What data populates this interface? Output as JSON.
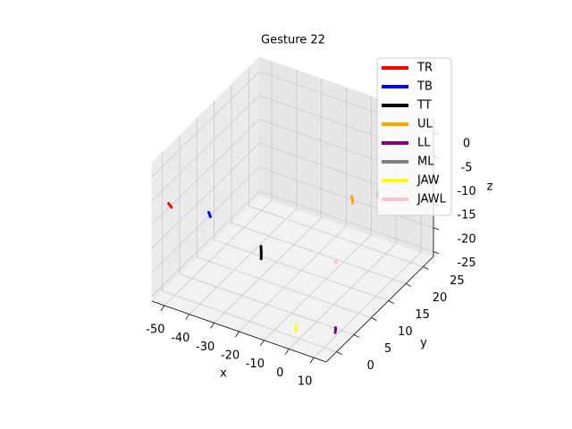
{
  "chart_data": {
    "type": "line3d",
    "title": "Gesture 22",
    "xlabel": "x",
    "ylabel": "y",
    "zlabel": "z",
    "xlim": [
      -55,
      15
    ],
    "ylim": [
      -3,
      28
    ],
    "zlim": [
      -26,
      3
    ],
    "xticks": [
      -50,
      -40,
      -30,
      -20,
      -10,
      0,
      10
    ],
    "yticks": [
      0,
      5,
      10,
      15,
      20,
      25
    ],
    "zticks": [
      -25,
      -20,
      -15,
      -10,
      -5,
      0
    ],
    "grid": true,
    "legend": "upper right",
    "series": [
      {
        "name": "TR",
        "color": "#ff0000",
        "x": [
          -48.6,
          -48.3,
          -48.0
        ],
        "y": [
          -2.8,
          -2.6,
          -2.4
        ],
        "z": [
          -4.5,
          -5,
          -5.5
        ]
      },
      {
        "name": "TB",
        "color": "#0000ff",
        "x": [
          -38.3,
          -38.1,
          -37.9
        ],
        "y": [
          1.4,
          1.5,
          1.6
        ],
        "z": [
          -7.5,
          -8,
          -8.5
        ]
      },
      {
        "name": "TT",
        "color": "#000000",
        "x": [
          -25.5,
          -25.4,
          -25.3
        ],
        "y": [
          7.3,
          7.3,
          7.2
        ],
        "z": [
          -16.5,
          -18,
          -19
        ]
      },
      {
        "name": "UL",
        "color": "#ffa500",
        "x": [
          -6.4,
          -6.0,
          -5.6
        ],
        "y": [
          19.8,
          19.7,
          19.5
        ],
        "z": [
          -11.5,
          -12,
          -12.5
        ]
      },
      {
        "name": "LL",
        "color": "#800080",
        "x": [
          9.6,
          9.8,
          10.0
        ],
        "y": [
          3.6,
          3.4,
          3.2
        ],
        "z": [
          -24.5,
          -25,
          -25.2
        ]
      },
      {
        "name": "ML",
        "color": "#808080",
        "x": [
          2.8,
          2.8,
          2.8
        ],
        "y": [
          20.7,
          20.7,
          20.7
        ],
        "z": [
          -9.5,
          -10,
          -10.5
        ]
      },
      {
        "name": "JAW",
        "color": "#ffff00",
        "x": [
          -2.9,
          -2.7,
          -2.5
        ],
        "y": [
          1.2,
          1.0,
          0.8
        ],
        "z": [
          -24.6,
          -25,
          -25.3
        ]
      },
      {
        "name": "JAWL",
        "color": "#ffc0cb",
        "x": [
          -6.6,
          -6.5,
          -6.4
        ],
        "y": [
          15.3,
          15.3,
          15.3
        ],
        "z": [
          -21.8,
          -22,
          -22.2
        ]
      }
    ]
  }
}
